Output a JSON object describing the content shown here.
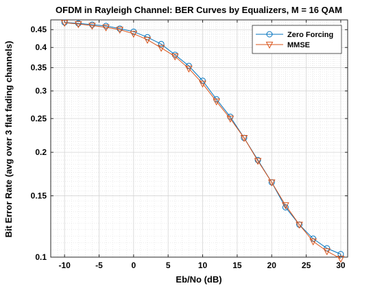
{
  "chart_data": {
    "type": "line",
    "title": "OFDM in Rayleigh Channel: BER Curves by Equalizers, M = 16 QAM",
    "xlabel": "Eb/No (dB)",
    "ylabel": "Bit Error Rate (avg over 3 flat fading channels)",
    "xlim": [
      -12,
      31
    ],
    "ylim": [
      0.1,
      0.48
    ],
    "yscale": "log",
    "grid": true,
    "minor_grid": true,
    "legend_position": "top-right",
    "x_ticks": [
      -10,
      -5,
      0,
      5,
      10,
      15,
      20,
      25,
      30
    ],
    "y_ticks": [
      0.1,
      0.15,
      0.2,
      0.25,
      0.3,
      0.35,
      0.4,
      0.45
    ],
    "x_tick_labels": [
      "-10",
      "-5",
      "0",
      "5",
      "10",
      "15",
      "20",
      "25",
      "30"
    ],
    "y_tick_labels": [
      "0.1",
      "0.15",
      "0.2",
      "0.25",
      "0.3",
      "0.35",
      "0.4",
      "0.45"
    ],
    "x": [
      -10,
      -8,
      -6,
      -4,
      -2,
      0,
      2,
      4,
      6,
      8,
      10,
      12,
      14,
      16,
      18,
      20,
      22,
      24,
      26,
      28,
      30
    ],
    "series": [
      {
        "name": "Zero Forcing",
        "color": "#0072BD",
        "marker": "circle",
        "values": [
          0.472,
          0.469,
          0.465,
          0.461,
          0.453,
          0.444,
          0.428,
          0.409,
          0.381,
          0.354,
          0.321,
          0.284,
          0.253,
          0.22,
          0.19,
          0.164,
          0.139,
          0.124,
          0.113,
          0.106,
          0.102
        ]
      },
      {
        "name": "MMSE",
        "color": "#D95319",
        "marker": "triangle-down",
        "values": [
          0.471,
          0.467,
          0.462,
          0.457,
          0.45,
          0.438,
          0.421,
          0.399,
          0.377,
          0.348,
          0.315,
          0.28,
          0.25,
          0.22,
          0.189,
          0.164,
          0.141,
          0.124,
          0.111,
          0.104,
          0.099
        ]
      }
    ]
  }
}
